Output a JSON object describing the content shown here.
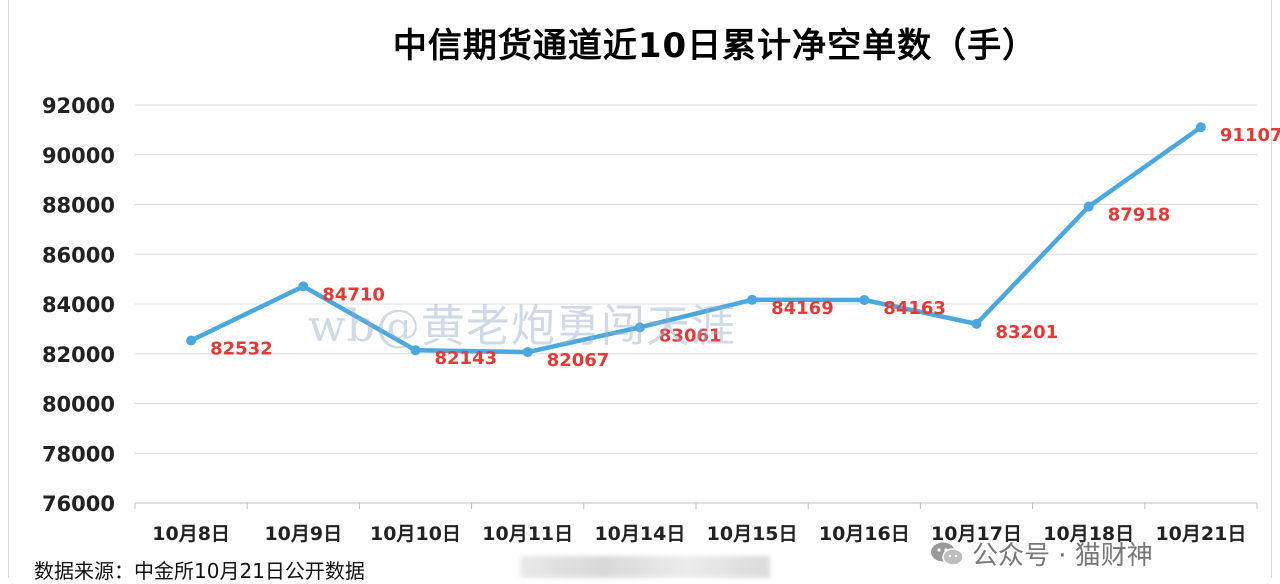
{
  "chart_data": {
    "type": "line",
    "title": "中信期货通道近10日累计净空单数（手）",
    "categories": [
      "10月8日",
      "10月9日",
      "10月10日",
      "10月11日",
      "10月14日",
      "10月15日",
      "10月16日",
      "10月17日",
      "10月18日",
      "10月21日"
    ],
    "series": [
      {
        "values": [
          82532,
          84710,
          82143,
          82067,
          83061,
          84169,
          84163,
          83201,
          87918,
          91107
        ]
      }
    ],
    "ylim": [
      76000,
      92000
    ],
    "yticks": [
      92000,
      90000,
      88000,
      86000,
      84000,
      82000,
      80000,
      78000,
      76000
    ],
    "grid": true,
    "line_color": "#4aa8e0",
    "label_color": "#e53935",
    "xlabel": "",
    "ylabel": ""
  },
  "watermark": "wb@黄老炮勇闯天涯",
  "source_note": "数据来源：中金所10月21日公开数据",
  "wechat_credit": "公众号 · 猫财神"
}
